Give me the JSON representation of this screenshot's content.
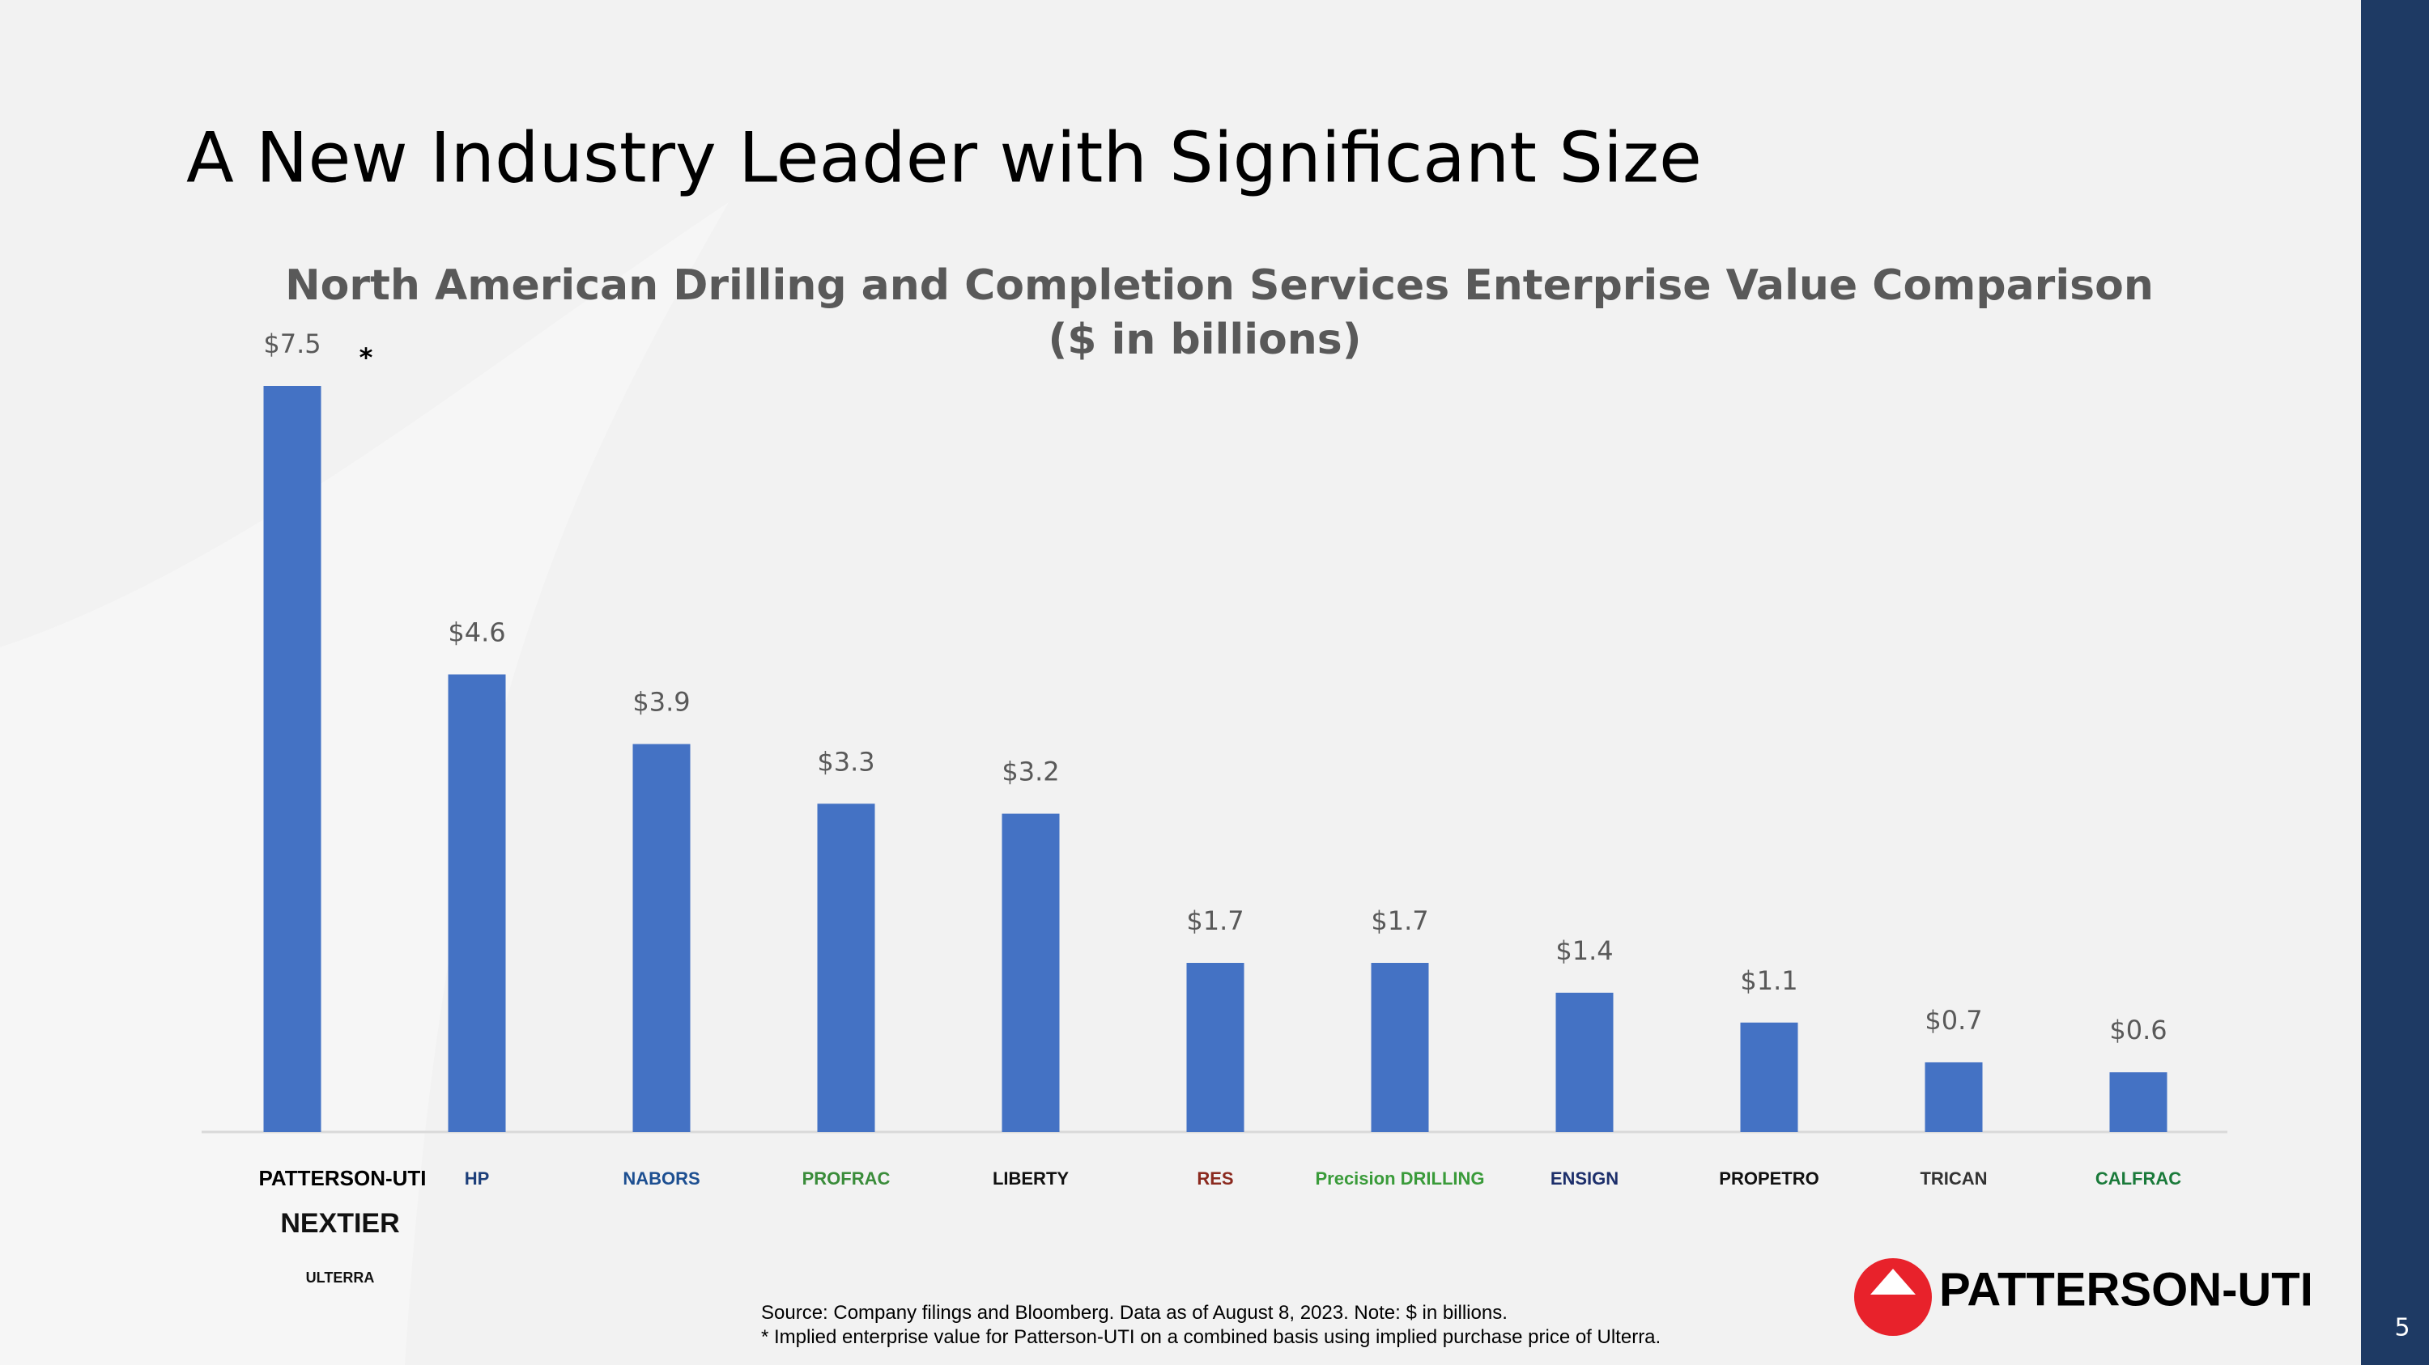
{
  "title": "A New Industry Leader with Significant Size",
  "chart_data": {
    "type": "bar",
    "title": "North American Drilling and Completion Services Enterprise Value Comparison",
    "subtitle": "($ in billions)",
    "categories": [
      "PATTERSON-UTI",
      "HP",
      "NABORS",
      "PROFRAC",
      "LIBERTY",
      "RES",
      "Precision DRILLING",
      "ENSIGN",
      "PROPETRO",
      "TRICAN",
      "CALFRAC"
    ],
    "combined_with": [
      "NEXTIER",
      "ULTERRA"
    ],
    "values": [
      7.5,
      4.6,
      3.9,
      3.3,
      3.2,
      1.7,
      1.7,
      1.4,
      1.1,
      0.7,
      0.6
    ],
    "value_labels": [
      "$7.5",
      "$4.6",
      "$3.9",
      "$3.3",
      "$3.2",
      "$1.7",
      "$1.7",
      "$1.4",
      "$1.1",
      "$0.7",
      "$0.6"
    ],
    "annotation": "*",
    "color": "#4472c4"
  },
  "footnotes": [
    "Source: Company filings and Bloomberg.  Data as of August 8, 2023.  Note: $ in billions.",
    "* Implied enterprise value for Patterson-UTI on a combined basis using implied purchase price of Ulterra."
  ],
  "logo": "PATTERSON-UTI",
  "page_number": 5
}
